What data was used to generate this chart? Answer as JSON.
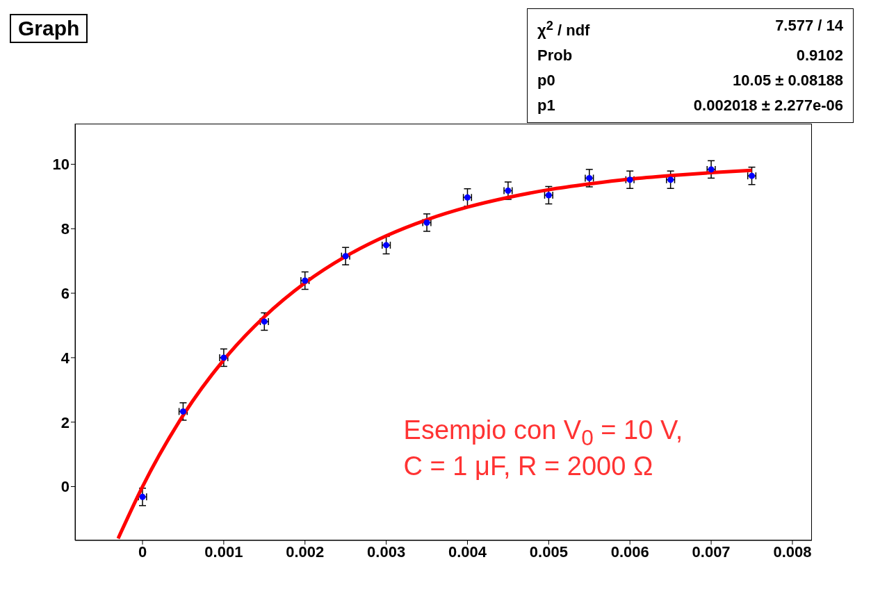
{
  "chart_data": {
    "type": "scatter",
    "title": "Graph",
    "xlim": [
      -0.00083,
      0.00824
    ],
    "xticks": [
      0,
      0.001,
      0.002,
      0.003,
      0.004,
      0.005,
      0.006,
      0.007,
      0.008
    ],
    "ylim": [
      -1.67,
      11.26
    ],
    "yticks": [
      0,
      2,
      4,
      6,
      8,
      10
    ],
    "series": [
      {
        "color": "#0000ff",
        "marker": "circle",
        "x": [
          0,
          0.0005,
          0.001,
          0.0015,
          0.002,
          0.0025,
          0.003,
          0.0035,
          0.004,
          0.0045,
          0.005,
          0.0055,
          0.006,
          0.0065,
          0.007,
          0.0075
        ],
        "values": [
          -0.32,
          2.33,
          4.0,
          5.12,
          6.39,
          7.15,
          7.49,
          8.19,
          8.97,
          9.18,
          9.04,
          9.57,
          9.52,
          9.52,
          9.84,
          9.64
        ],
        "errors": [
          0.27,
          0.27,
          0.27,
          0.27,
          0.27,
          0.27,
          0.27,
          0.27,
          0.27,
          0.27,
          0.27,
          0.27,
          0.27,
          0.27,
          0.27,
          0.27
        ],
        "xerrors": [
          5e-05,
          5e-05,
          5e-05,
          5e-05,
          5e-05,
          5e-05,
          5e-05,
          5e-05,
          5e-05,
          5e-05,
          5e-05,
          5e-05,
          5e-05,
          5e-05,
          5e-05,
          5e-05
        ]
      },
      {
        "type": "line",
        "color": "#ff0000",
        "line_style": "solid",
        "marker": "none",
        "x": [
          -0.0003,
          0,
          0.0005,
          0.001,
          0.0015,
          0.002,
          0.0025,
          0.003,
          0.0035,
          0.004,
          0.0045,
          0.005,
          0.0055,
          0.006,
          0.0065,
          0.007,
          0.0075
        ],
        "values": [
          -1.61,
          0,
          2.21,
          3.93,
          5.27,
          6.32,
          7.14,
          7.78,
          8.28,
          8.67,
          8.97,
          9.21,
          9.39,
          9.54,
          9.65,
          9.74,
          9.81
        ]
      }
    ],
    "annotations": [
      "χ$^{2}$ / ndf",
      "7.577 / 14",
      "Prob",
      "0.9102",
      "p0",
      "10.05 ± 0.08188",
      "p1",
      "0.002018 ± 2.277e-06",
      "Esempio con V$_{0}$ = 10 V,",
      "C =  1 μF, R = 2000 Ω"
    ]
  }
}
